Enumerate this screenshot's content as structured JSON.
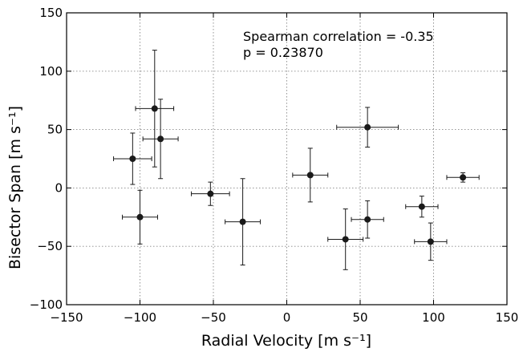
{
  "chart_data": {
    "type": "scatter",
    "xlabel": "Radial Velocity [m s⁻¹]",
    "ylabel": "Bisector Span [m s⁻¹]",
    "xlim": [
      -150,
      150
    ],
    "ylim": [
      -100,
      150
    ],
    "xticks": [
      -150,
      -100,
      -50,
      0,
      50,
      100,
      150
    ],
    "yticks": [
      -100,
      -50,
      0,
      50,
      100,
      150
    ],
    "xtick_labels": [
      "−150",
      "−100",
      "−50",
      "0",
      "50",
      "100",
      "150"
    ],
    "ytick_labels": [
      "−100",
      "−50",
      "0",
      "50",
      "100",
      "150"
    ],
    "grid": true,
    "marker_color": "#1a1a1a",
    "annotations": [
      "Spearman correlation = -0.35",
      "p = 0.23870"
    ],
    "points": [
      {
        "x": -105,
        "y": 25,
        "xerr": 13,
        "yerr": 22
      },
      {
        "x": -100,
        "y": -25,
        "xerr": 12,
        "yerr": 23
      },
      {
        "x": -90,
        "y": 68,
        "xerr": 13,
        "yerr": 50
      },
      {
        "x": -86,
        "y": 42,
        "xerr": 12,
        "yerr": 34
      },
      {
        "x": -52,
        "y": -5,
        "xerr": 13,
        "yerr": 10
      },
      {
        "x": -30,
        "y": -29,
        "xerr": 12,
        "yerr": 37
      },
      {
        "x": 16,
        "y": 11,
        "xerr": 12,
        "yerr": 23
      },
      {
        "x": 40,
        "y": -44,
        "xerr": 12,
        "yerr": 26
      },
      {
        "x": 55,
        "y": 52,
        "xerr": 21,
        "yerr": 17
      },
      {
        "x": 55,
        "y": -27,
        "xerr": 11,
        "yerr": 16
      },
      {
        "x": 92,
        "y": -16,
        "xerr": 11,
        "yerr": 9
      },
      {
        "x": 98,
        "y": -46,
        "xerr": 11,
        "yerr": 16
      },
      {
        "x": 120,
        "y": 9,
        "xerr": 11,
        "yerr": 4
      }
    ]
  }
}
